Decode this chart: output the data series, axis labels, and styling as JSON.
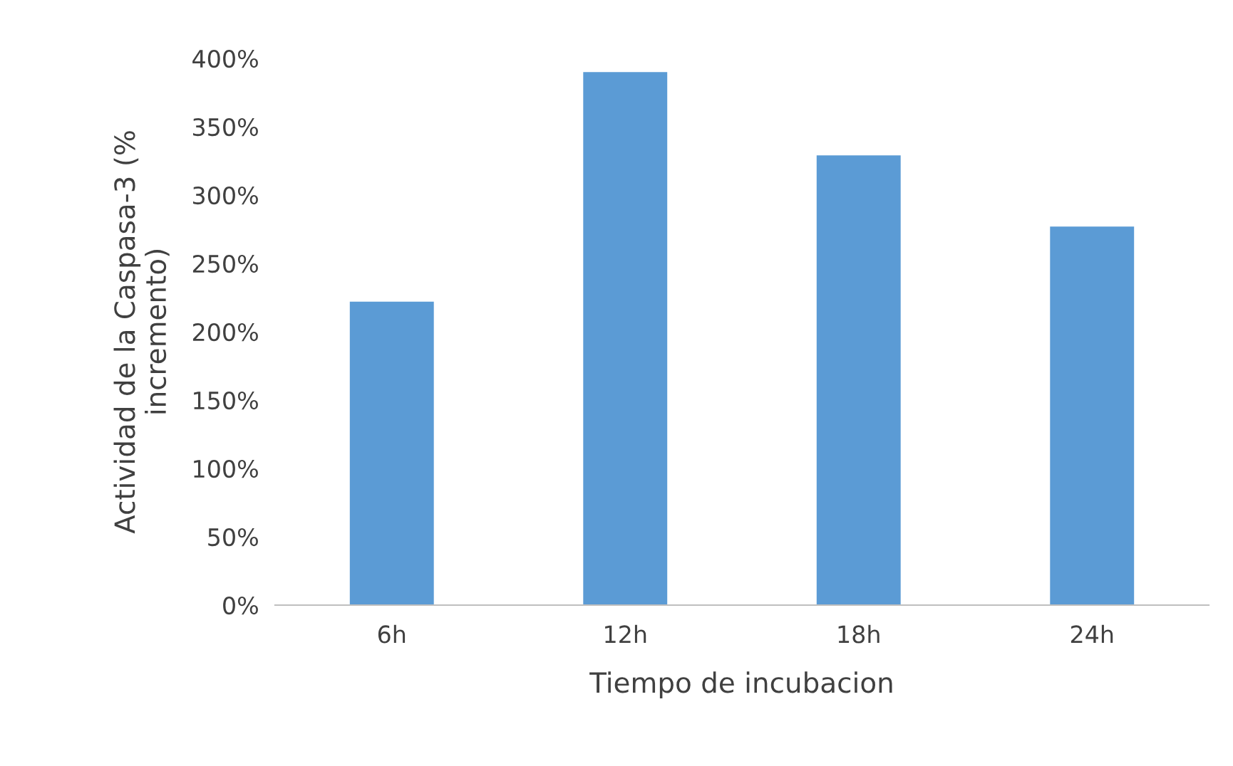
{
  "chart_data": {
    "type": "bar",
    "categories": [
      "6h",
      "12h",
      "18h",
      "24h"
    ],
    "values": [
      222,
      390,
      329,
      277
    ],
    "color": "#5b9bd5",
    "xlabel": "Tiempo de incubacion",
    "ylabel": "Actividad de la Caspasa-3 (%\nincremento)",
    "ylim": [
      0,
      400
    ],
    "yticks": [
      {
        "value": 0,
        "label": "0%"
      },
      {
        "value": 50,
        "label": "50%"
      },
      {
        "value": 100,
        "label": "100%"
      },
      {
        "value": 150,
        "label": "150%"
      },
      {
        "value": 200,
        "label": "200%"
      },
      {
        "value": 250,
        "label": "250%"
      },
      {
        "value": 300,
        "label": "300%"
      },
      {
        "value": 350,
        "label": "350%"
      },
      {
        "value": 400,
        "label": "400%"
      }
    ],
    "grid": false,
    "legend": false
  }
}
